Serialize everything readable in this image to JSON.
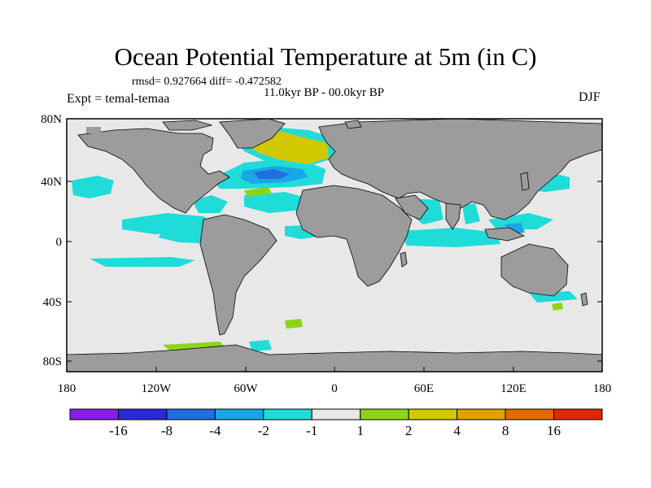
{
  "header": {
    "title": "Ocean Potential Temperature at 5m (in C)",
    "stats": "rmsd= 0.927664 diff= -0.472582",
    "period": "11.0kyr BP - 00.0kyr BP",
    "experiment": "Expt = temal-temaa",
    "season": "DJF"
  },
  "axes": {
    "lat_labels": [
      "80N",
      "40N",
      "0",
      "40S",
      "80S"
    ],
    "lon_labels": [
      "180",
      "120W",
      "60W",
      "0",
      "60E",
      "120E",
      "180"
    ]
  },
  "colorbar": {
    "colors": [
      "#8a1ee6",
      "#2a2ad8",
      "#1f6fe0",
      "#1aa6e6",
      "#1fdcd8",
      "#e8e8e8",
      "#8cd41a",
      "#d2c800",
      "#dfa000",
      "#e46a00",
      "#e02800"
    ],
    "tick_labels": [
      "-16",
      "-8",
      "-4",
      "-2",
      "-1",
      "1",
      "2",
      "4",
      "8",
      "16"
    ]
  },
  "colors": {
    "land": "#9c9c9c",
    "ocean": "#e8e8e8",
    "cyan": "#1fdcd8",
    "light_blue": "#1aa6e6",
    "blue": "#1f6fe0",
    "green": "#8cd41a",
    "yellow": "#d2c800"
  }
}
